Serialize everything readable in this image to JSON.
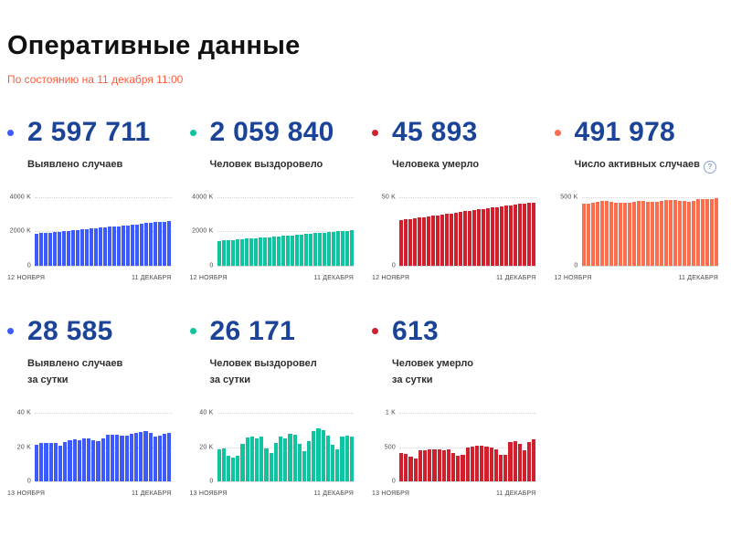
{
  "page": {
    "title": "Оперативные данные",
    "subtitle": "По состоянию на 11 декабря 11:00"
  },
  "colors": {
    "blue": "#3d5afe",
    "green": "#10c4a0",
    "red": "#d0202e",
    "orange": "#fb6e4e",
    "accent_number": "#1b4499",
    "subtitle": "#fa5c3f"
  },
  "help_icon_glyph": "?",
  "stats": [
    {
      "value": "2 597 711",
      "label": "Выявлено случаев",
      "label2": "",
      "color": "#3d5afe"
    },
    {
      "value": "2 059 840",
      "label": "Человек выздоровело",
      "label2": "",
      "color": "#10c4a0"
    },
    {
      "value": "45 893",
      "label": "Человека умерло",
      "label2": "",
      "color": "#d0202e"
    },
    {
      "value": "491 978",
      "label": "Число активных случаев",
      "label2": "",
      "color": "#fb6e4e"
    },
    {
      "value": "28 585",
      "label": "Выявлено случаев",
      "label2": "за сутки",
      "color": "#3d5afe"
    },
    {
      "value": "26 171",
      "label": "Человек выздоровел",
      "label2": "за сутки",
      "color": "#10c4a0"
    },
    {
      "value": "613",
      "label": "Человек умерло",
      "label2": "за сутки",
      "color": "#d0202e"
    }
  ],
  "chart_data": [
    {
      "type": "bar",
      "title": "Выявлено случаев (всего)",
      "color": "#3d5afe",
      "ylim": [
        0,
        4000
      ],
      "yticks": [
        {
          "value": 4000,
          "label": "4000 K"
        },
        {
          "value": 2000,
          "label": "2000 K"
        },
        {
          "value": 0,
          "label": "0"
        }
      ],
      "x_start_label": "12 НОЯБРЯ",
      "x_end_label": "11 ДЕКАБРЯ",
      "unit": "K",
      "values": [
        1855,
        1880,
        1903,
        1929,
        1954,
        1980,
        2005,
        2030,
        2055,
        2080,
        2105,
        2129,
        2153,
        2177,
        2202,
        2226,
        2251,
        2275,
        2302,
        2327,
        2354,
        2382,
        2410,
        2439,
        2466,
        2493,
        2520,
        2546,
        2569,
        2598
      ]
    },
    {
      "type": "bar",
      "title": "Человек выздоровело (всего)",
      "color": "#10c4a0",
      "ylim": [
        0,
        4000
      ],
      "yticks": [
        {
          "value": 4000,
          "label": "4000 K"
        },
        {
          "value": 2000,
          "label": "2000 K"
        },
        {
          "value": 0,
          "label": "0"
        }
      ],
      "x_start_label": "12 НОЯБРЯ",
      "x_end_label": "11 ДЕКАБРЯ",
      "unit": "K",
      "values": [
        1440,
        1459,
        1480,
        1500,
        1521,
        1540,
        1560,
        1580,
        1600,
        1620,
        1640,
        1660,
        1680,
        1702,
        1725,
        1748,
        1770,
        1790,
        1813,
        1836,
        1860,
        1884,
        1906,
        1928,
        1950,
        1972,
        1995,
        2017,
        2036,
        2060
      ]
    },
    {
      "type": "bar",
      "title": "Человека умерло (всего)",
      "color": "#d0202e",
      "ylim": [
        0,
        50
      ],
      "yticks": [
        {
          "value": 50,
          "label": "50 K"
        },
        {
          "value": 0,
          "label": "0"
        }
      ],
      "x_start_label": "12 НОЯБРЯ",
      "x_end_label": "11 ДЕКАБРЯ",
      "unit": "K",
      "values": [
        33.2,
        33.6,
        34.1,
        34.5,
        35.0,
        35.4,
        35.9,
        36.3,
        36.8,
        37.2,
        37.7,
        38.1,
        38.6,
        39.0,
        39.5,
        39.9,
        40.4,
        40.9,
        41.3,
        41.8,
        42.2,
        42.7,
        43.1,
        43.6,
        44.0,
        44.4,
        44.9,
        45.2,
        45.5,
        45.9
      ]
    },
    {
      "type": "bar",
      "title": "Число активных случаев",
      "color": "#fb6e4e",
      "ylim": [
        0,
        500
      ],
      "yticks": [
        {
          "value": 500,
          "label": "500 K"
        },
        {
          "value": 0,
          "label": "0"
        }
      ],
      "x_start_label": "12 НОЯБРЯ",
      "x_end_label": "11 ДЕКАБРЯ",
      "unit": "K",
      "values": [
        455,
        452,
        460,
        466,
        471,
        470,
        463,
        459,
        458,
        457,
        462,
        468,
        470,
        469,
        466,
        464,
        467,
        470,
        476,
        478,
        477,
        474,
        470,
        468,
        472,
        484,
        486,
        485,
        488,
        492
      ]
    },
    {
      "type": "bar",
      "title": "Выявлено случаев за сутки",
      "color": "#3d5afe",
      "ylim": [
        0,
        40
      ],
      "yticks": [
        {
          "value": 40,
          "label": "40 K"
        },
        {
          "value": 20,
          "label": "20 K"
        },
        {
          "value": 0,
          "label": "0"
        }
      ],
      "x_start_label": "13 НОЯБРЯ",
      "x_end_label": "11 ДЕКАБРЯ",
      "unit": "K",
      "values": [
        21.6,
        22.4,
        22.7,
        22.6,
        22.4,
        21.0,
        22.8,
        24.0,
        24.8,
        24.3,
        25.0,
        25.2,
        24.1,
        23.7,
        25.3,
        27.5,
        27.3,
        27.1,
        26.8,
        26.6,
        27.9,
        28.1,
        29.0,
        29.2,
        28.2,
        26.1,
        26.5,
        28.0,
        28.6
      ]
    },
    {
      "type": "bar",
      "title": "Человек выздоровел за сутки",
      "color": "#10c4a0",
      "ylim": [
        0,
        40
      ],
      "yticks": [
        {
          "value": 40,
          "label": "40 K"
        },
        {
          "value": 20,
          "label": "20 K"
        },
        {
          "value": 0,
          "label": "0"
        }
      ],
      "x_start_label": "13 НОЯБРЯ",
      "x_end_label": "11 ДЕКАБРЯ",
      "unit": "K",
      "values": [
        19.0,
        19.3,
        14.8,
        14.2,
        15.2,
        22.2,
        25.6,
        26.2,
        25.2,
        26.4,
        19.2,
        16.6,
        22.6,
        26.0,
        25.4,
        27.6,
        27.4,
        22.0,
        17.6,
        23.6,
        29.4,
        30.8,
        29.8,
        27.0,
        21.2,
        19.0,
        26.4,
        26.8,
        26.2
      ]
    },
    {
      "type": "bar",
      "title": "Человек умерло за сутки",
      "color": "#d0202e",
      "ylim": [
        0,
        1000
      ],
      "yticks": [
        {
          "value": 1000,
          "label": "1 K"
        },
        {
          "value": 500,
          "label": "500"
        },
        {
          "value": 0,
          "label": "0"
        }
      ],
      "x_start_label": "13 НОЯБРЯ",
      "x_end_label": "11 ДЕКАБРЯ",
      "unit": "",
      "values": [
        420,
        400,
        365,
        330,
        450,
        455,
        465,
        470,
        465,
        455,
        470,
        420,
        375,
        385,
        500,
        510,
        525,
        520,
        505,
        500,
        465,
        385,
        390,
        575,
        585,
        555,
        460,
        575,
        613
      ]
    }
  ]
}
